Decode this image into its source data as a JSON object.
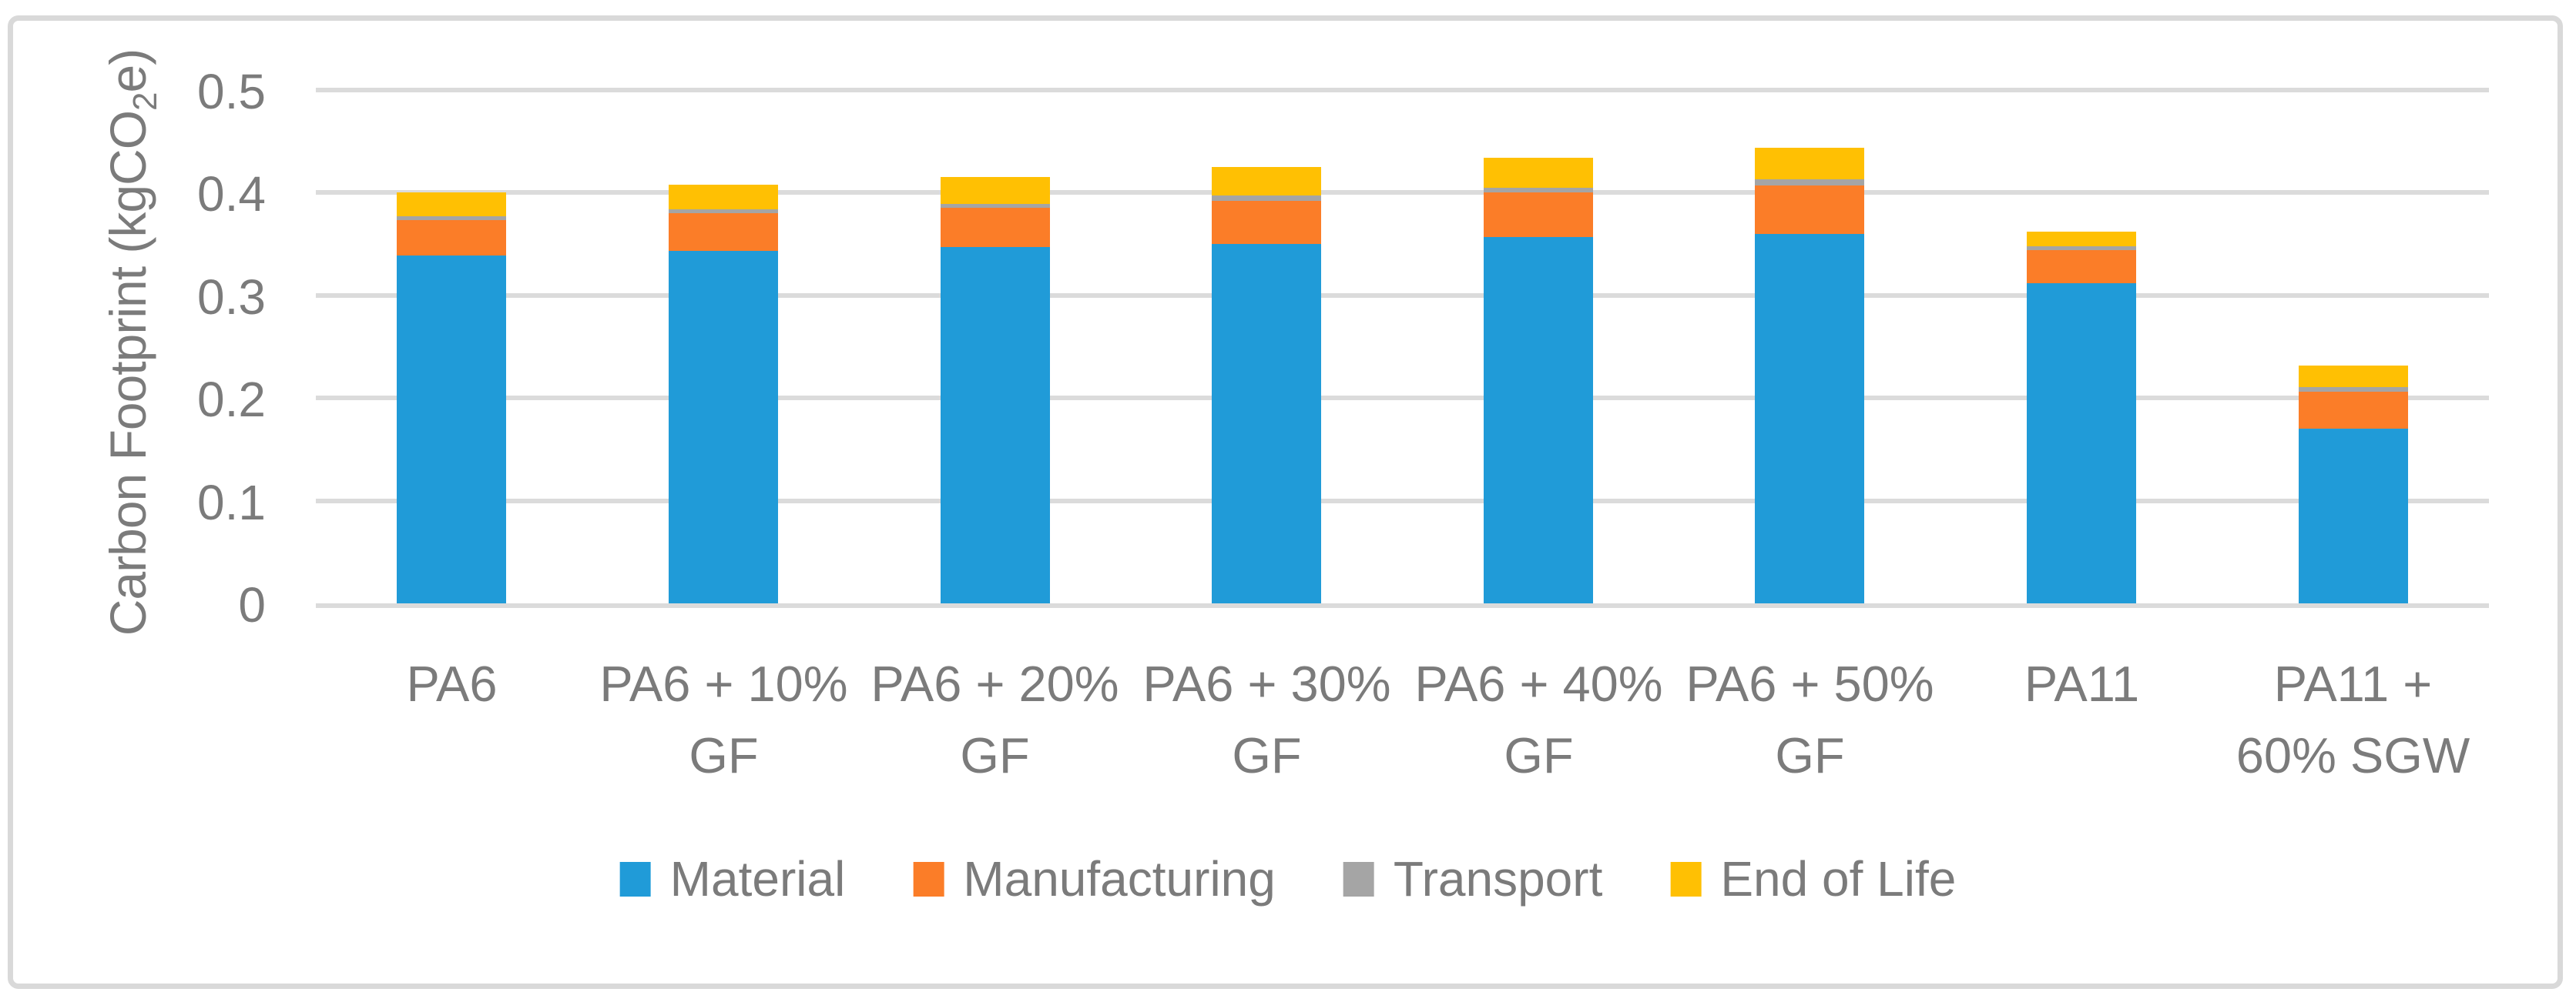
{
  "figure": {
    "y_axis": {
      "title_prefix": "Carbon Footprint (kgCO",
      "title_sub": "2",
      "title_suffix": "e)",
      "tick_labels": [
        "0",
        "0.1",
        "0.2",
        "0.3",
        "0.4",
        "0.5"
      ]
    },
    "legend_labels": [
      "Material",
      "Manufacturing",
      "Transport",
      "End of Life"
    ]
  },
  "chart_data": {
    "type": "bar",
    "stacked": true,
    "title": "",
    "xlabel": "",
    "ylabel": "Carbon Footprint (kgCO2e)",
    "ylim": [
      0,
      0.5
    ],
    "yticks": [
      0,
      0.1,
      0.2,
      0.3,
      0.4,
      0.5
    ],
    "ytick_labels": [
      "0",
      "0.1",
      "0.2",
      "0.3",
      "0.4",
      "0.5"
    ],
    "grid": true,
    "legend_position": "bottom",
    "categories": [
      "PA6",
      "PA6 + 10% GF",
      "PA6 + 20% GF",
      "PA6 + 30% GF",
      "PA6 + 40% GF",
      "PA6 + 50% GF",
      "PA11",
      "PA11 + 60% SGW"
    ],
    "category_label_lines": [
      [
        "PA6"
      ],
      [
        "PA6 + 10%",
        "GF"
      ],
      [
        "PA6 + 20%",
        "GF"
      ],
      [
        "PA6 + 30%",
        "GF"
      ],
      [
        "PA6 + 40%",
        "GF"
      ],
      [
        "PA6 + 50%",
        "GF"
      ],
      [
        "PA11"
      ],
      [
        "PA11 +",
        "60% SGW"
      ]
    ],
    "series": [
      {
        "name": "Material",
        "color": "#209BD8",
        "values": [
          0.339,
          0.343,
          0.347,
          0.35,
          0.357,
          0.36,
          0.312,
          0.17
        ]
      },
      {
        "name": "Manufacturing",
        "color": "#FB7D28",
        "values": [
          0.034,
          0.037,
          0.038,
          0.042,
          0.043,
          0.047,
          0.032,
          0.036
        ]
      },
      {
        "name": "Transport",
        "color": "#A5A5A5",
        "values": [
          0.004,
          0.004,
          0.004,
          0.005,
          0.005,
          0.006,
          0.004,
          0.005
        ]
      },
      {
        "name": "End of Life",
        "color": "#FFC003",
        "values": [
          0.023,
          0.024,
          0.026,
          0.028,
          0.029,
          0.031,
          0.014,
          0.021
        ]
      }
    ],
    "totals": [
      0.4,
      0.408,
      0.415,
      0.425,
      0.434,
      0.444,
      0.362,
      0.232
    ],
    "colors": {
      "gridline": "#DBDBDB",
      "frame_border": "#D9D9D9",
      "axis_text": "#7B7B7B"
    }
  }
}
